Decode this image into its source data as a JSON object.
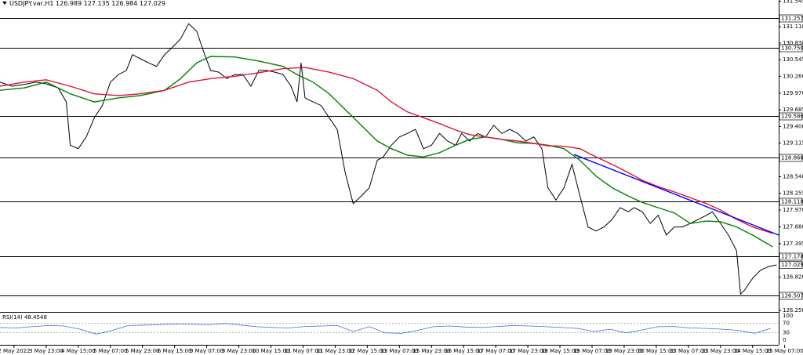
{
  "chart_data": {
    "type": "line",
    "title": "USDJPY.var,H1  126.989 127.135 126.984 127.029",
    "xlim": [
      0,
      388
    ],
    "ylim": [
      126.225,
      131.566
    ],
    "xticks": [
      {
        "value": 7,
        "label": "2 May 2022"
      },
      {
        "value": 23,
        "label": "3 May 23:00"
      },
      {
        "value": 39,
        "label": "4 May 15:00"
      },
      {
        "value": 55,
        "label": "5 May 07:00"
      },
      {
        "value": 71,
        "label": "5 May 23:00"
      },
      {
        "value": 87,
        "label": "6 May 15:00"
      },
      {
        "value": 103,
        "label": "9 May 07:00"
      },
      {
        "value": 119,
        "label": "9 May 23:00"
      },
      {
        "value": 135,
        "label": "10 May 15:00"
      },
      {
        "value": 151,
        "label": "11 May 07:00"
      },
      {
        "value": 167,
        "label": "11 May 23:00"
      },
      {
        "value": 183,
        "label": "12 May 15:00"
      },
      {
        "value": 199,
        "label": "13 May 07:00"
      },
      {
        "value": 215,
        "label": "15 May 23:00"
      },
      {
        "value": 231,
        "label": "16 May 15:00"
      },
      {
        "value": 247,
        "label": "17 May 07:00"
      },
      {
        "value": 263,
        "label": "17 May 23:00"
      },
      {
        "value": 279,
        "label": "18 May 15:00"
      },
      {
        "value": 295,
        "label": "19 May 07:00"
      },
      {
        "value": 311,
        "label": "19 May 23:00"
      },
      {
        "value": 327,
        "label": "20 May 15:00"
      },
      {
        "value": 343,
        "label": "23 May 07:00"
      },
      {
        "value": 359,
        "label": "23 May 23:00"
      },
      {
        "value": 375,
        "label": "24 May 15:00"
      },
      {
        "value": 391,
        "label": "25 May 07:00"
      }
    ],
    "yticks": [
      {
        "value": 131.545,
        "label": "131.545"
      },
      {
        "value": 131.11,
        "label": "131.110"
      },
      {
        "value": 130.83,
        "label": "130.830"
      },
      {
        "value": 130.545,
        "label": "130.545"
      },
      {
        "value": 130.26,
        "label": "130.260"
      },
      {
        "value": 129.97,
        "label": "129.970"
      },
      {
        "value": 129.685,
        "label": "129.685"
      },
      {
        "value": 129.4,
        "label": "129.400"
      },
      {
        "value": 129.115,
        "label": "129.115"
      },
      {
        "value": 128.54,
        "label": "128.540"
      },
      {
        "value": 128.255,
        "label": "128.255"
      },
      {
        "value": 127.97,
        "label": "127.970"
      },
      {
        "value": 127.68,
        "label": "127.680"
      },
      {
        "value": 127.395,
        "label": "127.395"
      },
      {
        "value": 126.82,
        "label": "126.820"
      },
      {
        "value": 126.25,
        "label": "126.250"
      }
    ],
    "levels": [
      {
        "value": 131.257,
        "label": "131.257"
      },
      {
        "value": 130.75,
        "label": "130.750"
      },
      {
        "value": 129.586,
        "label": "129.586"
      },
      {
        "value": 128.866,
        "label": "128.866"
      },
      {
        "value": 128.118,
        "label": "128.118"
      },
      {
        "value": 127.178,
        "label": "127.178"
      },
      {
        "value": 126.507,
        "label": "126.507"
      }
    ],
    "current_price": 127.029,
    "series": [
      {
        "color": "#000000",
        "x": [
          0,
          6,
          12,
          18,
          23,
          29,
          33,
          35,
          39,
          43,
          47,
          51,
          55,
          59,
          63,
          66,
          70,
          74,
          78,
          82,
          86,
          90,
          94,
          98,
          102,
          105,
          109,
          113,
          117,
          121,
          125,
          129,
          133,
          137,
          141,
          145,
          148,
          150,
          152,
          156,
          160,
          164,
          168,
          172,
          176,
          180,
          184,
          188,
          191,
          195,
          199,
          203,
          207,
          211,
          215,
          219,
          223,
          227,
          230,
          234,
          238,
          242,
          246,
          250,
          254,
          258,
          262,
          266,
          270,
          273,
          277,
          281,
          285,
          289,
          293,
          297,
          301,
          305,
          309,
          313,
          316,
          320,
          324,
          328,
          332,
          336,
          340,
          344,
          348,
          352,
          355,
          359,
          363,
          367,
          369,
          371,
          375,
          379,
          383,
          387
        ],
        "values": [
          130.16,
          130.09,
          130.12,
          130.16,
          130.13,
          130.06,
          129.82,
          129.08,
          129.02,
          129.22,
          129.55,
          129.76,
          130.16,
          130.29,
          130.36,
          130.63,
          130.56,
          130.49,
          130.43,
          130.63,
          130.76,
          130.9,
          131.16,
          131.03,
          130.63,
          130.36,
          130.33,
          130.22,
          130.29,
          130.29,
          130.09,
          130.36,
          130.36,
          130.33,
          130.29,
          130.09,
          129.82,
          130.49,
          129.89,
          129.82,
          129.76,
          129.55,
          129.35,
          128.61,
          128.08,
          128.21,
          128.35,
          128.82,
          128.88,
          129.08,
          129.22,
          129.28,
          129.35,
          129.02,
          129.08,
          129.28,
          129.15,
          129.08,
          129.28,
          129.15,
          129.28,
          129.22,
          129.42,
          129.28,
          129.35,
          129.28,
          129.15,
          129.22,
          129.02,
          128.35,
          128.14,
          128.35,
          128.75,
          128.21,
          127.68,
          127.61,
          127.68,
          127.81,
          128.01,
          127.94,
          128.01,
          127.94,
          127.74,
          127.88,
          127.54,
          127.68,
          127.68,
          127.74,
          127.81,
          127.88,
          127.94,
          127.74,
          127.54,
          127.27,
          126.53,
          126.6,
          126.8,
          126.94,
          127.0,
          127.03
        ]
      },
      {
        "color": "#008000",
        "x": [
          0,
          12,
          23,
          35,
          47,
          59,
          70,
          82,
          90,
          98,
          105,
          117,
          129,
          141,
          148,
          156,
          164,
          172,
          180,
          188,
          195,
          203,
          211,
          219,
          227,
          234,
          242,
          250,
          258,
          266,
          273,
          281,
          289,
          297,
          305,
          313,
          320,
          328,
          336,
          344,
          352,
          359,
          367,
          375,
          385
        ],
        "values": [
          130.02,
          130.06,
          130.16,
          129.96,
          129.82,
          129.89,
          129.93,
          130.02,
          130.22,
          130.49,
          130.6,
          130.59,
          130.52,
          130.43,
          130.29,
          130.16,
          129.96,
          129.69,
          129.42,
          129.15,
          129.02,
          128.91,
          128.88,
          128.95,
          129.08,
          129.18,
          129.22,
          129.18,
          129.12,
          129.11,
          129.08,
          129.02,
          128.82,
          128.55,
          128.35,
          128.21,
          128.1,
          128.01,
          127.92,
          127.74,
          127.78,
          127.77,
          127.68,
          127.54,
          127.34
        ]
      },
      {
        "color": "#dc143c",
        "x": [
          0,
          12,
          23,
          35,
          47,
          59,
          70,
          82,
          94,
          105,
          117,
          129,
          141,
          152,
          164,
          176,
          188,
          195,
          203,
          211,
          219,
          227,
          234,
          242,
          250,
          258,
          266,
          273,
          281,
          289,
          297,
          305,
          313,
          320,
          328,
          336,
          344,
          352,
          359,
          367,
          375,
          385
        ],
        "values": [
          130.09,
          130.16,
          130.2,
          130.09,
          129.96,
          129.93,
          129.96,
          130.02,
          130.16,
          130.22,
          130.26,
          130.32,
          130.39,
          130.41,
          130.33,
          130.22,
          130.02,
          129.82,
          129.65,
          129.55,
          129.45,
          129.34,
          129.26,
          129.22,
          129.18,
          129.15,
          129.11,
          129.07,
          129.06,
          129.02,
          128.88,
          128.75,
          128.61,
          128.48,
          128.37,
          128.28,
          128.18,
          128.08,
          127.97,
          127.81,
          127.68,
          127.57
        ]
      },
      {
        "color": "#0000ff",
        "x": [
          286,
          388
        ],
        "values": [
          128.92,
          127.54
        ]
      }
    ],
    "rsi": {
      "title": "RSI(14) 48.4548",
      "ylim": [
        0,
        100
      ],
      "yticks": [
        100,
        70,
        30,
        0
      ],
      "color": "#4169e1",
      "x": [
        0,
        8,
        16,
        24,
        32,
        40,
        48,
        56,
        64,
        72,
        80,
        88,
        96,
        104,
        112,
        120,
        128,
        136,
        144,
        152,
        160,
        168,
        176,
        184,
        192,
        200,
        208,
        216,
        224,
        232,
        240,
        248,
        256,
        264,
        272,
        280,
        288,
        296,
        304,
        312,
        320,
        328,
        336,
        344,
        352,
        360,
        368,
        376,
        384
      ],
      "values": [
        52,
        50,
        55,
        60,
        58,
        45,
        25,
        40,
        60,
        62,
        64,
        66,
        65,
        63,
        68,
        62,
        55,
        52,
        50,
        56,
        58,
        60,
        35,
        55,
        30,
        28,
        40,
        55,
        58,
        54,
        52,
        56,
        60,
        58,
        55,
        52,
        48,
        35,
        45,
        30,
        42,
        55,
        56,
        50,
        48,
        45,
        40,
        28,
        48
      ]
    }
  }
}
